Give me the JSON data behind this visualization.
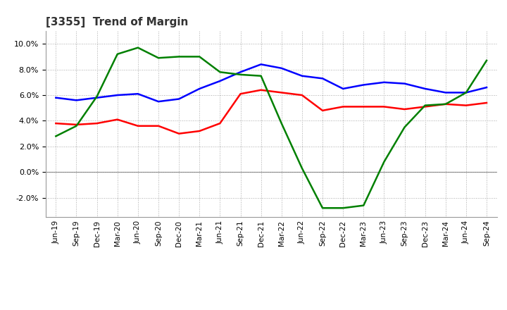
{
  "title": "[3355]  Trend of Margin",
  "x_labels": [
    "Jun-19",
    "Sep-19",
    "Dec-19",
    "Mar-20",
    "Jun-20",
    "Sep-20",
    "Dec-20",
    "Mar-21",
    "Jun-21",
    "Sep-21",
    "Dec-21",
    "Mar-22",
    "Jun-22",
    "Sep-22",
    "Dec-22",
    "Mar-23",
    "Jun-23",
    "Sep-23",
    "Dec-23",
    "Mar-24",
    "Jun-24",
    "Sep-24"
  ],
  "ordinary_income": [
    5.8,
    5.6,
    5.8,
    6.0,
    6.1,
    5.5,
    5.7,
    6.5,
    7.1,
    7.8,
    8.4,
    8.1,
    7.5,
    7.3,
    6.5,
    6.8,
    7.0,
    6.9,
    6.5,
    6.2,
    6.2,
    6.6
  ],
  "net_income": [
    3.8,
    3.7,
    3.8,
    4.1,
    3.6,
    3.6,
    3.0,
    3.2,
    3.8,
    6.1,
    6.4,
    6.2,
    6.0,
    4.8,
    5.1,
    5.1,
    5.1,
    4.9,
    5.1,
    5.3,
    5.2,
    5.4
  ],
  "operating_cashflow": [
    2.8,
    3.6,
    5.9,
    9.2,
    9.7,
    8.9,
    9.0,
    9.0,
    7.8,
    7.6,
    7.5,
    3.8,
    0.3,
    -2.8,
    -2.8,
    -2.6,
    0.8,
    3.5,
    5.2,
    5.3,
    6.2,
    8.7
  ],
  "ylim": [
    -3.5,
    11.0
  ],
  "yticks": [
    -2.0,
    0.0,
    2.0,
    4.0,
    6.0,
    8.0,
    10.0
  ],
  "color_ordinary": "#0000FF",
  "color_net": "#FF0000",
  "color_cashflow": "#008000",
  "bg_color": "#FFFFFF",
  "grid_color": "#AAAAAA",
  "line_width": 1.8
}
